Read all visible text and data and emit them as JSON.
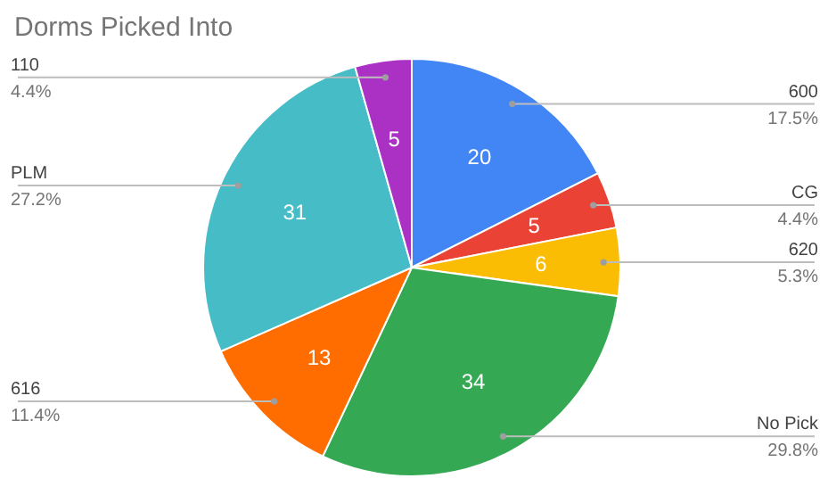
{
  "chart_data": {
    "type": "pie",
    "title": "Dorms Picked Into",
    "categories": [
      "600",
      "CG",
      "620",
      "No Pick",
      "616",
      "PLM",
      "110"
    ],
    "values": [
      20,
      5,
      6,
      34,
      13,
      31,
      5
    ],
    "colors": [
      "#4285f4",
      "#ea4335",
      "#fbbc04",
      "#34a853",
      "#ff6d01",
      "#46bdc6",
      "#ab30c4"
    ],
    "annotations": [
      "17.5%",
      "4.4%",
      "5.3%",
      "29.8%",
      "11.4%",
      "27.2%",
      "4.4%"
    ],
    "data_labels": true
  }
}
